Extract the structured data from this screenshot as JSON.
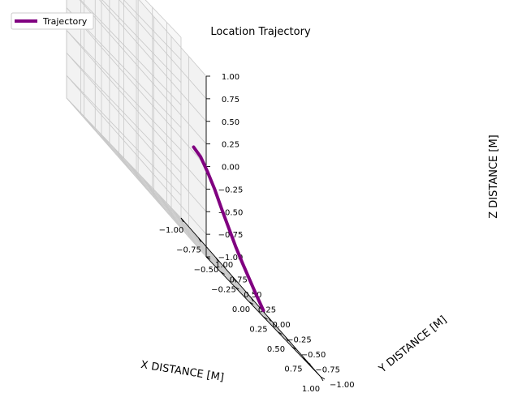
{
  "chart_data": {
    "type": "line",
    "projection": "3d",
    "title": "Location Trajectory",
    "xlabel": "X DISTANCE [M]",
    "ylabel": "Y DISTANCE [M]",
    "zlabel": "Z DISTANCE [M]",
    "xlim": [
      -1.0,
      1.0
    ],
    "ylim": [
      -1.0,
      1.0
    ],
    "zlim": [
      -1.0,
      1.0
    ],
    "xticks": [
      "−1.00",
      "−0.75",
      "−0.50",
      "−0.25",
      "0.00",
      "0.25",
      "0.50",
      "0.75",
      "1.00"
    ],
    "yticks": [
      "−1.00",
      "−0.75",
      "−0.50",
      "−0.25",
      "0.00",
      "0.25",
      "0.50",
      "0.75",
      "1.00"
    ],
    "zticks": [
      "−1.00",
      "−0.75",
      "−0.50",
      "−0.25",
      "0.00",
      "0.25",
      "0.50",
      "0.75",
      "1.00"
    ],
    "grid": true,
    "legend_position": "top-left",
    "series": [
      {
        "name": "Trajectory",
        "color": "#800080",
        "x": [
          0.0,
          0.1,
          0.2,
          0.3,
          0.4,
          0.5,
          0.6,
          0.7,
          0.8,
          0.9,
          1.0
        ],
        "y": [
          0.0,
          0.0,
          0.0,
          0.0,
          0.0,
          0.0,
          0.0,
          0.0,
          0.0,
          0.0,
          0.0
        ],
        "z": [
          0.0,
          -0.02,
          -0.1,
          -0.2,
          -0.33,
          -0.45,
          -0.57,
          -0.67,
          -0.76,
          -0.85,
          -0.93
        ]
      }
    ]
  }
}
